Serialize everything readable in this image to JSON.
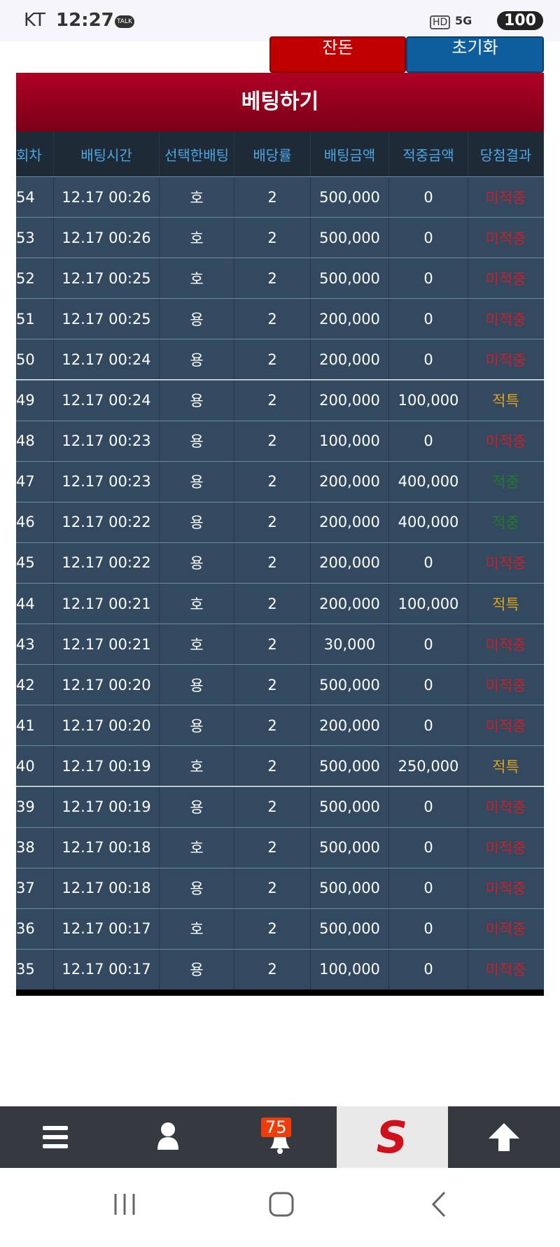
{
  "status_bar": {
    "carrier": "KT",
    "time": "12:27",
    "talk": "TALK",
    "hd": "HD",
    "network": "5G",
    "battery": "100"
  },
  "buttons": [
    "잔돈",
    "초기화"
  ],
  "title": "베팅하기",
  "table": {
    "headers": [
      "회차",
      "배팅시간",
      "선택한배팅",
      "배당률",
      "배팅금액",
      "적중금액",
      "당첨결과"
    ],
    "rows": [
      {
        "cells": [
          "54",
          "12.17 00:26",
          "호",
          "2",
          "500,000",
          "0",
          "미적중"
        ],
        "result_color": "#c8202a"
      },
      {
        "cells": [
          "53",
          "12.17 00:26",
          "호",
          "2",
          "500,000",
          "0",
          "미적중"
        ],
        "result_color": "#c8202a"
      },
      {
        "cells": [
          "52",
          "12.17 00:25",
          "호",
          "2",
          "500,000",
          "0",
          "미적중"
        ],
        "result_color": "#c8202a"
      },
      {
        "cells": [
          "51",
          "12.17 00:25",
          "용",
          "2",
          "200,000",
          "0",
          "미적중"
        ],
        "result_color": "#c8202a"
      },
      {
        "cells": [
          "50",
          "12.17 00:24",
          "용",
          "2",
          "200,000",
          "0",
          "미적중"
        ],
        "result_color": "#c8202a"
      },
      {
        "cells": [
          "49",
          "12.17 00:24",
          "용",
          "2",
          "200,000",
          "100,000",
          "적특"
        ],
        "result_color": "#e0a21a"
      },
      {
        "cells": [
          "48",
          "12.17 00:23",
          "용",
          "2",
          "100,000",
          "0",
          "미적중"
        ],
        "result_color": "#c8202a"
      },
      {
        "cells": [
          "47",
          "12.17 00:23",
          "용",
          "2",
          "200,000",
          "400,000",
          "적중"
        ],
        "result_color": "#1f7a2a"
      },
      {
        "cells": [
          "46",
          "12.17 00:22",
          "용",
          "2",
          "200,000",
          "400,000",
          "적중"
        ],
        "result_color": "#1f7a2a"
      },
      {
        "cells": [
          "45",
          "12.17 00:22",
          "용",
          "2",
          "200,000",
          "0",
          "미적중"
        ],
        "result_color": "#c8202a"
      },
      {
        "cells": [
          "44",
          "12.17 00:21",
          "호",
          "2",
          "200,000",
          "100,000",
          "적특"
        ],
        "result_color": "#e0a21a"
      },
      {
        "cells": [
          "43",
          "12.17 00:21",
          "호",
          "2",
          "30,000",
          "0",
          "미적중"
        ],
        "result_color": "#c8202a"
      },
      {
        "cells": [
          "42",
          "12.17 00:20",
          "용",
          "2",
          "500,000",
          "0",
          "미적중"
        ],
        "result_color": "#c8202a"
      },
      {
        "cells": [
          "41",
          "12.17 00:20",
          "용",
          "2",
          "200,000",
          "0",
          "미적중"
        ],
        "result_color": "#c8202a"
      },
      {
        "cells": [
          "40",
          "12.17 00:19",
          "호",
          "2",
          "500,000",
          "250,000",
          "적특"
        ],
        "result_color": "#e0a21a"
      },
      {
        "cells": [
          "39",
          "12.17 00:19",
          "용",
          "2",
          "500,000",
          "0",
          "미적중"
        ],
        "result_color": "#c8202a"
      },
      {
        "cells": [
          "38",
          "12.17 00:18",
          "호",
          "2",
          "500,000",
          "0",
          "미적중"
        ],
        "result_color": "#c8202a"
      },
      {
        "cells": [
          "37",
          "12.17 00:18",
          "용",
          "2",
          "500,000",
          "0",
          "미적중"
        ],
        "result_color": "#c8202a"
      },
      {
        "cells": [
          "36",
          "12.17 00:17",
          "호",
          "2",
          "500,000",
          "0",
          "미적중"
        ],
        "result_color": "#c8202a"
      },
      {
        "cells": [
          "35",
          "12.17 00:17",
          "용",
          "2",
          "100,000",
          "0",
          "미적중"
        ],
        "result_color": "#c8202a"
      }
    ]
  },
  "bottom_nav": {
    "badge": "75"
  }
}
